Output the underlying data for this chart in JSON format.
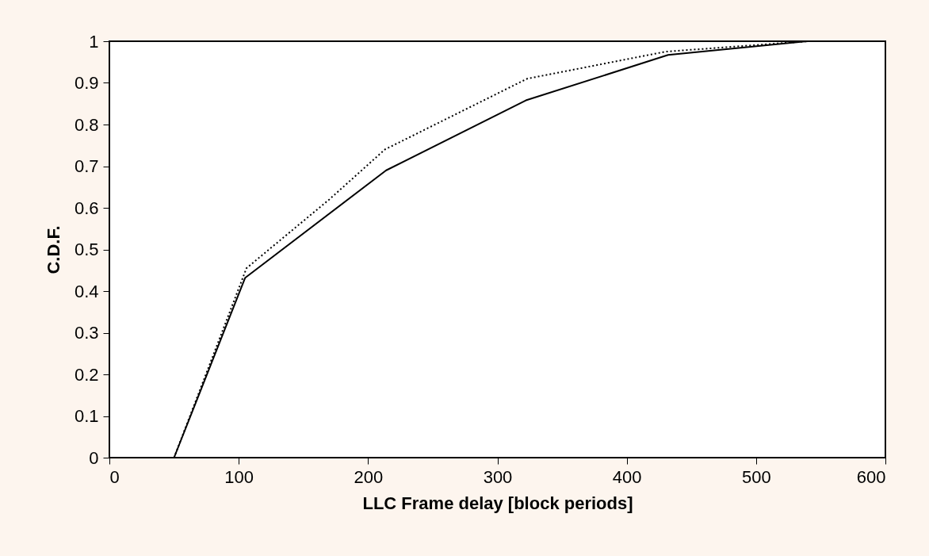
{
  "chart_data": {
    "type": "line",
    "xlabel": "LLC Frame delay [block periods]",
    "ylabel": "C.D.F.",
    "xlim": [
      0,
      600
    ],
    "xticks": [
      0,
      100,
      200,
      300,
      400,
      500,
      600
    ],
    "ylim": [
      0,
      1
    ],
    "yticks": [
      0,
      0.1,
      0.2,
      0.3,
      0.4,
      0.5,
      0.6,
      0.7,
      0.8,
      0.9,
      1
    ],
    "grid": false,
    "legend": false,
    "marker": "none",
    "series": [
      {
        "color": "#000000",
        "line_style": "solid",
        "x": [
          50,
          105,
          214,
          322,
          432,
          540,
          600
        ],
        "values": [
          0,
          0.432,
          0.69,
          0.858,
          0.967,
          1,
          1
        ]
      },
      {
        "color": "#000000",
        "line_style": "dotted",
        "x": [
          50,
          106,
          170,
          213,
          323,
          430,
          540,
          600
        ],
        "values": [
          0,
          0.455,
          0.62,
          0.74,
          0.91,
          0.975,
          1,
          1
        ]
      }
    ]
  }
}
